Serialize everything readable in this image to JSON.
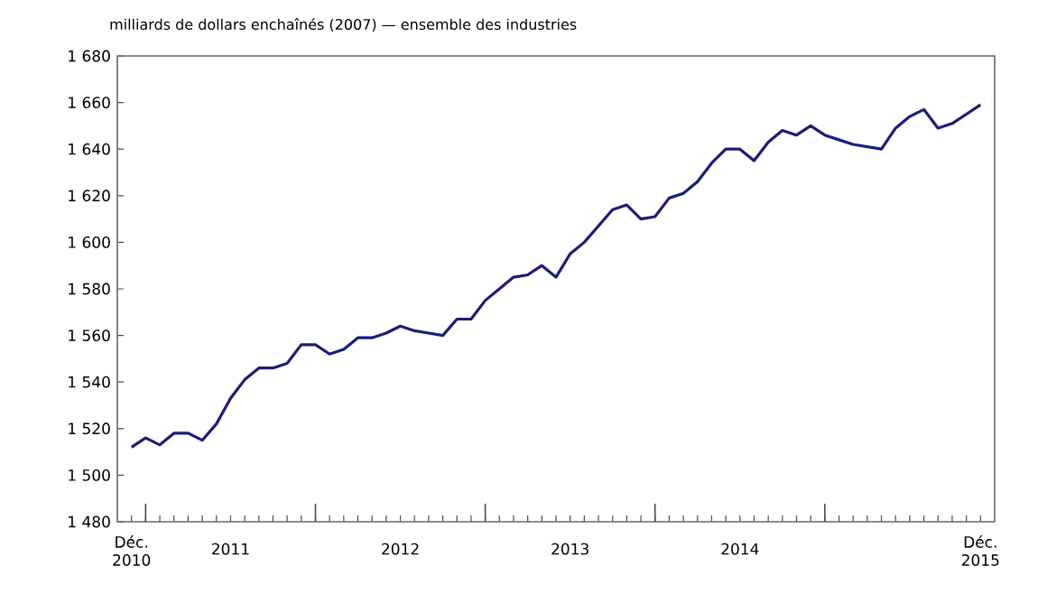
{
  "chart_data": {
    "type": "line",
    "ylabel": "milliards de dollars enchaînés (2007) — ensemble des industries",
    "categories": [
      "Déc. 2010",
      null,
      null,
      null,
      null,
      null,
      null,
      "2011",
      null,
      null,
      null,
      null,
      null,
      null,
      null,
      null,
      null,
      null,
      null,
      "2012",
      null,
      null,
      null,
      null,
      null,
      null,
      null,
      null,
      null,
      null,
      null,
      "2013",
      null,
      null,
      null,
      null,
      null,
      null,
      null,
      null,
      null,
      null,
      null,
      "2014",
      null,
      null,
      null,
      null,
      null,
      null,
      null,
      null,
      null,
      null,
      null,
      null,
      null,
      null,
      null,
      null,
      "Déc. 2015"
    ],
    "series": [
      {
        "color": "#1c1c78",
        "values": [
          1512,
          1516,
          1513,
          1518,
          1518,
          1515,
          1522,
          1533,
          1541,
          1546,
          1546,
          1548,
          1556,
          1556,
          1552,
          1554,
          1559,
          1559,
          1561,
          1564,
          1562,
          1561,
          1560,
          1567,
          1567,
          1575,
          1580,
          1585,
          1586,
          1590,
          1585,
          1595,
          1600,
          1607,
          1614,
          1616,
          1610,
          1611,
          1619,
          1621,
          1626,
          1634,
          1640,
          1640,
          1635,
          1643,
          1648,
          1646,
          1650,
          1646,
          1644,
          1642,
          1641,
          1640,
          1649,
          1654,
          1657,
          1649,
          1651,
          1655,
          1659
        ]
      }
    ],
    "ylim": [
      1480,
      1680
    ],
    "yticks": [
      {
        "value": 1480,
        "label": "1 480"
      },
      {
        "value": 1500,
        "label": "1 500"
      },
      {
        "value": 1520,
        "label": "1 520"
      },
      {
        "value": 1540,
        "label": "1 540"
      },
      {
        "value": 1560,
        "label": "1 560"
      },
      {
        "value": 1580,
        "label": "1 580"
      },
      {
        "value": 1600,
        "label": "1 600"
      },
      {
        "value": 1620,
        "label": "1 620"
      },
      {
        "value": 1640,
        "label": "1 640"
      },
      {
        "value": 1660,
        "label": "1 660"
      },
      {
        "value": 1680,
        "label": "1 680"
      }
    ],
    "grid": false,
    "marker": "none",
    "line_style": "solid"
  }
}
